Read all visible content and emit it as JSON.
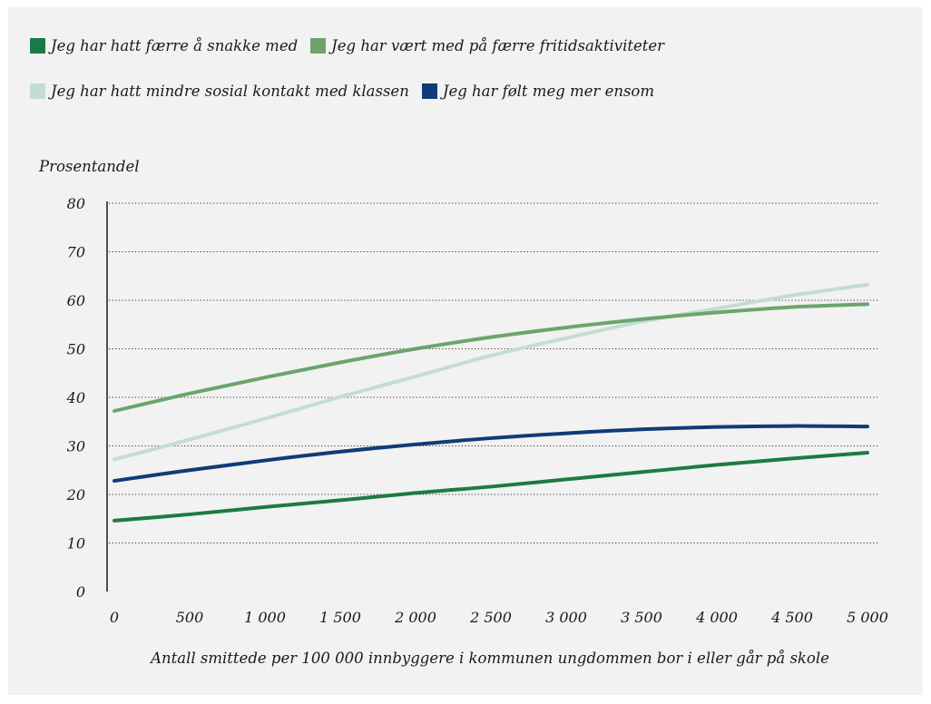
{
  "chart_data": {
    "type": "line",
    "title": "",
    "xlabel": "Antall smittede per 100 000 innbyggere i kommunen ungdommen bor i eller går på skole",
    "ylabel": "Prosentandel",
    "x": [
      0,
      500,
      1000,
      1500,
      2000,
      2500,
      3000,
      3500,
      4000,
      4500,
      5000
    ],
    "xticks": [
      "0",
      "500",
      "1 000",
      "1 500",
      "2 000",
      "2 500",
      "3 000",
      "3 500",
      "4 000",
      "4 500",
      "5 000"
    ],
    "yticks": [
      "0",
      "10",
      "20",
      "30",
      "40",
      "50",
      "60",
      "70",
      "80"
    ],
    "xlim": [
      0,
      5000
    ],
    "ylim": [
      0,
      80
    ],
    "grid": "horizontal dotted",
    "legend_position": "top",
    "series": [
      {
        "name": "Jeg har hatt færre å snakke med",
        "color": "#1e7a44",
        "values": [
          14.6,
          15.9,
          17.4,
          18.8,
          20.3,
          21.6,
          23.1,
          24.6,
          26.1,
          27.4,
          28.6
        ]
      },
      {
        "name": "Jeg har vært med på færre fritidsaktiviteter",
        "color": "#6aa56d",
        "values": [
          37.2,
          40.8,
          44.1,
          47.2,
          50.0,
          52.4,
          54.4,
          56.1,
          57.5,
          58.6,
          59.2
        ]
      },
      {
        "name": "Jeg har hatt mindre sosial kontakt med klassen",
        "color": "#c3ddd4",
        "values": [
          27.2,
          31.3,
          35.6,
          40.1,
          44.3,
          48.6,
          52.2,
          55.6,
          58.3,
          61.0,
          63.2
        ]
      },
      {
        "name": "Jeg har følt meg mer ensom",
        "color": "#0f3b78",
        "values": [
          22.8,
          25.0,
          27.0,
          28.8,
          30.3,
          31.6,
          32.6,
          33.4,
          33.9,
          34.1,
          34.0
        ]
      }
    ]
  }
}
